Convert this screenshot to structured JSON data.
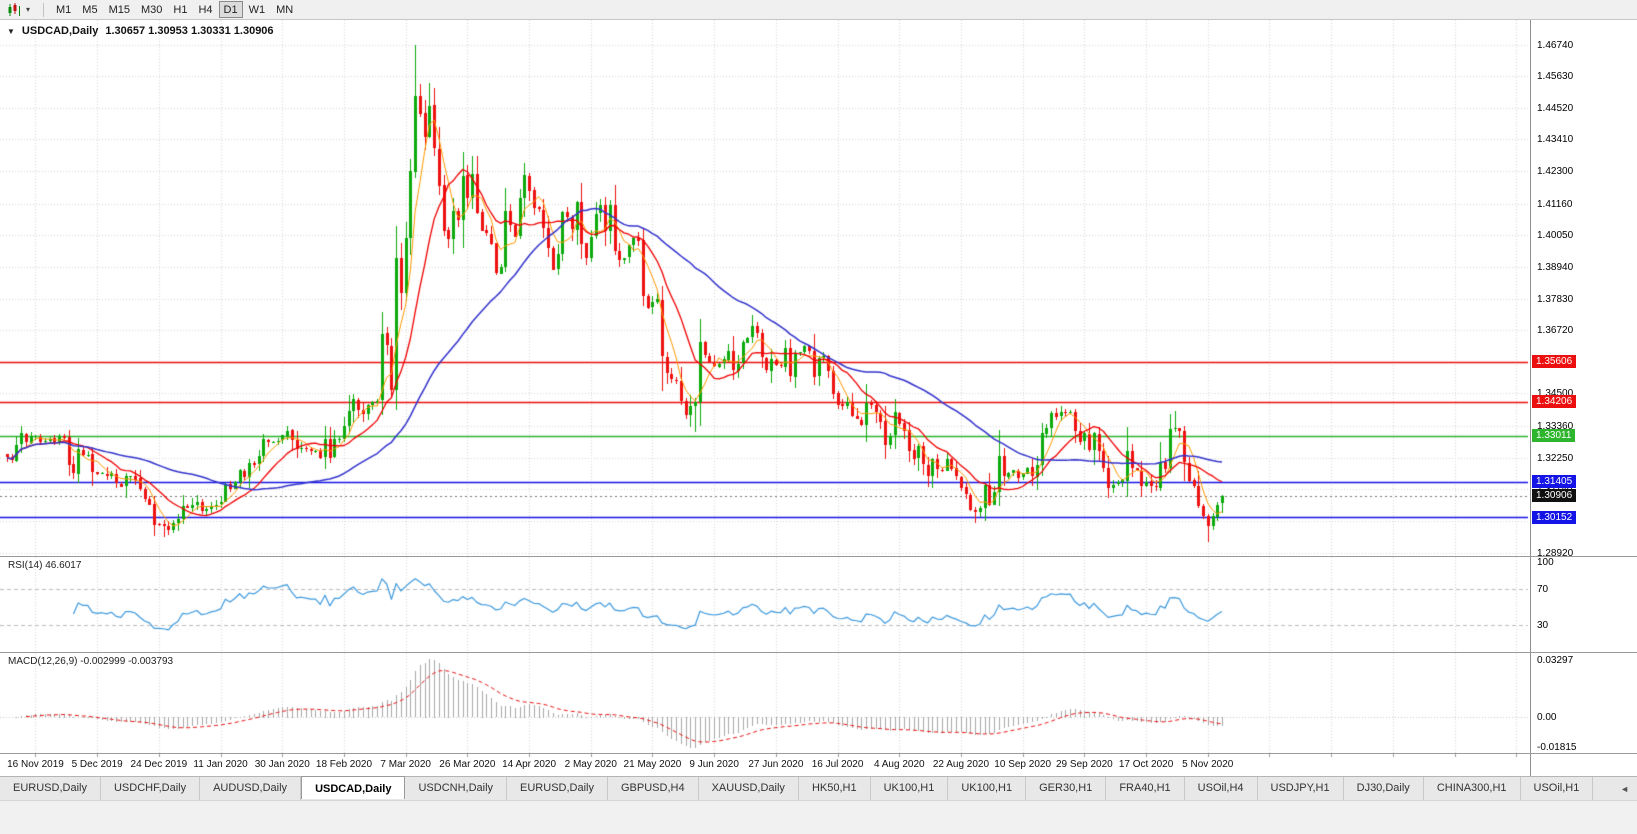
{
  "toolbar": {
    "dropdown_glyph": "▾",
    "timeframes": [
      "M1",
      "M5",
      "M15",
      "M30",
      "H1",
      "H4",
      "D1",
      "W1",
      "MN"
    ],
    "active_timeframe": "D1"
  },
  "chart": {
    "collapse_glyph": "▼",
    "title": "USDCAD,Daily",
    "ohlc": "1.30657 1.30953 1.30331 1.30906"
  },
  "tabs": {
    "items": [
      "EURUSD,Daily",
      "USDCHF,Daily",
      "AUDUSD,Daily",
      "USDCAD,Daily",
      "USDCNH,Daily",
      "EURUSD,Daily",
      "GBPUSD,H4",
      "XAUUSD,Daily",
      "HK50,H1",
      "UK100,H1",
      "UK100,H1",
      "GER30,H1",
      "FRA40,H1",
      "USOil,H4",
      "USDJPY,H1",
      "DJ30,Daily",
      "CHINA300,H1",
      "USOil,H1"
    ],
    "active_index": 3,
    "scroll_left_glyph": "◄"
  },
  "chart_data": {
    "type": "candlestick",
    "symbol": "USDCAD",
    "period": "Daily",
    "current_ohlc": {
      "open": 1.30657,
      "high": 1.30953,
      "low": 1.30331,
      "close": 1.30906
    },
    "current_price": 1.30906,
    "y_axis": {
      "min": 1.288,
      "max": 1.476,
      "tick_labels": [
        "1.46740",
        "1.45630",
        "1.44520",
        "1.43410",
        "1.42300",
        "1.41160",
        "1.40050",
        "1.38940",
        "1.37830",
        "1.36720",
        "1.35610",
        "1.34500",
        "1.33360",
        "1.32250",
        "1.31140",
        "1.30030",
        "1.28920"
      ]
    },
    "x_axis": {
      "tick_labels": [
        "16 Nov 2019",
        "5 Dec 2019",
        "24 Dec 2019",
        "11 Jan 2020",
        "30 Jan 2020",
        "18 Feb 2020",
        "7 Mar 2020",
        "26 Mar 2020",
        "14 Apr 2020",
        "2 May 2020",
        "21 May 2020",
        "9 Jun 2020",
        "27 Jun 2020",
        "16 Jul 2020",
        "4 Aug 2020",
        "22 Aug 2020",
        "10 Sep 2020",
        "29 Sep 2020",
        "17 Oct 2020",
        "5 Nov 2020"
      ]
    },
    "closes": [
      1.3225,
      1.3215,
      1.327,
      1.331,
      1.328,
      1.33,
      1.33,
      1.328,
      1.3285,
      1.329,
      1.328,
      1.33,
      1.3295,
      1.32,
      1.317,
      1.3255,
      1.3235,
      1.3235,
      1.3175,
      1.3165,
      1.317,
      1.316,
      1.317,
      1.3135,
      1.3125,
      1.316,
      1.316,
      1.315,
      1.3115,
      1.308,
      1.306,
      1.299,
      1.299,
      1.2985,
      1.297,
      1.2995,
      1.301,
      1.3055,
      1.305,
      1.306,
      1.307,
      1.304,
      1.3045,
      1.3055,
      1.306,
      1.307,
      1.313,
      1.3115,
      1.314,
      1.318,
      1.3155,
      1.3205,
      1.32,
      1.323,
      1.329,
      1.328,
      1.328,
      1.3285,
      1.3305,
      1.332,
      1.3285,
      1.3255,
      1.326,
      1.3255,
      1.325,
      1.325,
      1.3225,
      1.329,
      1.3225,
      1.329,
      1.329,
      1.3335,
      1.339,
      1.343,
      1.3395,
      1.338,
      1.341,
      1.342,
      1.3425,
      1.366,
      1.362,
      1.3465,
      1.3925,
      1.38,
      1.3995,
      1.423,
      1.4495,
      1.443,
      1.4349,
      1.446,
      1.431,
      1.418,
      1.402,
      1.399,
      1.409,
      1.406,
      1.4213,
      1.4135,
      1.422,
      1.4085,
      1.402,
      1.401,
      1.3975,
      1.387,
      1.3895,
      1.409,
      1.404,
      1.4,
      1.4135,
      1.4215,
      1.416,
      1.41,
      1.4095,
      1.403,
      1.396,
      1.3885,
      1.394,
      1.4085,
      1.407,
      1.4025,
      1.412,
      1.3975,
      1.3925,
      1.4,
      1.408,
      1.411,
      1.402,
      1.411,
      1.395,
      1.392,
      1.3925,
      1.397,
      1.3995,
      1.3985,
      1.379,
      1.375,
      1.377,
      1.378,
      1.358,
      1.352,
      1.35,
      1.3495,
      1.3425,
      1.3375,
      1.3405,
      1.342,
      1.363,
      1.3585,
      1.356,
      1.3545,
      1.3555,
      1.357,
      1.36,
      1.353,
      1.3555,
      1.363,
      1.3645,
      1.3685,
      1.366,
      1.3576,
      1.353,
      1.357,
      1.355,
      1.3545,
      1.361,
      1.351,
      1.359,
      1.3595,
      1.3615,
      1.36,
      1.351,
      1.3575,
      1.358,
      1.353,
      1.345,
      1.341,
      1.3405,
      1.342,
      1.337,
      1.336,
      1.334,
      1.3415,
      1.341,
      1.3385,
      1.335,
      1.327,
      1.33,
      1.3385,
      1.3345,
      1.332,
      1.325,
      1.322,
      1.3265,
      1.32,
      1.316,
      1.322,
      1.3185,
      1.318,
      1.322,
      1.3185,
      1.316,
      1.312,
      1.3095,
      1.304,
      1.3035,
      1.305,
      1.313,
      1.306,
      1.3105,
      1.323,
      1.316,
      1.317,
      1.318,
      1.3155,
      1.317,
      1.319,
      1.316,
      1.32,
      1.331,
      1.333,
      1.338,
      1.337,
      1.3385,
      1.338,
      1.3385,
      1.332,
      1.328,
      1.331,
      1.325,
      1.331,
      1.325,
      1.319,
      1.312,
      1.313,
      1.314,
      1.3145,
      1.325,
      1.319,
      1.318,
      1.3125,
      1.314,
      1.3125,
      1.312,
      1.321,
      1.3185,
      1.3325,
      1.333,
      1.332,
      1.321,
      1.3145,
      1.3125,
      1.3055,
      1.302,
      1.2985,
      1.302,
      1.306,
      1.30906
    ],
    "wick_overrides": {
      "31": {
        "l": 1.2952
      },
      "33": {
        "l": 1.295
      },
      "86": {
        "h": 1.4674
      },
      "145": {
        "l": 1.3315
      },
      "204": {
        "l": 1.2994
      },
      "246": {
        "h": 1.339
      },
      "253": {
        "l": 1.2928
      },
      "256": {
        "o": 1.30657,
        "h": 1.30953,
        "l": 1.30331
      }
    },
    "seed": 20201113,
    "candle_up_color": "#0caa0c",
    "candle_down_color": "#ee1111",
    "moving_averages": [
      {
        "period": 5,
        "color": "#ff9900",
        "width": 1
      },
      {
        "period": 12,
        "color": "#f20000",
        "width": 1.3
      },
      {
        "period": 40,
        "color": "#3333cc",
        "width": 1.5
      }
    ],
    "horizontal_levels": [
      {
        "price": 1.35606,
        "color": "#ec0f0f"
      },
      {
        "price": 1.34206,
        "color": "#ec0f0f"
      },
      {
        "price": 1.33011,
        "color": "#2db52d"
      },
      {
        "price": 1.31405,
        "color": "#1414e6"
      },
      {
        "price": 1.30152,
        "color": "#1414e6"
      }
    ],
    "price_tags": [
      {
        "text": "1.35606",
        "price": 1.35606,
        "bg": "#ec0f0f"
      },
      {
        "text": "1.34206",
        "price": 1.34206,
        "bg": "#ec0f0f"
      },
      {
        "text": "1.33011",
        "price": 1.33011,
        "bg": "#2db52d"
      },
      {
        "text": "1.31405",
        "price": 1.31405,
        "bg": "#1414e6"
      },
      {
        "text": "1.30906",
        "price": 1.30906,
        "bg": "#101010"
      },
      {
        "text": "1.30152",
        "price": 1.30152,
        "bg": "#1414e6"
      }
    ],
    "rsi": {
      "display_label": "RSI(14) 46.6017",
      "period": 14,
      "current": 46.6017,
      "range": [
        0,
        105
      ],
      "levels": [
        70,
        30
      ],
      "axis_labels": [
        {
          "text": "100",
          "value": 100
        },
        {
          "text": "70",
          "value": 70
        },
        {
          "text": "30",
          "value": 30
        }
      ],
      "color": "#3e9ade"
    },
    "macd": {
      "display_label": "MACD(12,26,9) -0.002999 -0.003793",
      "fast": 12,
      "slow": 26,
      "signal": 9,
      "current_main": -0.002999,
      "current_signal": -0.003793,
      "range": [
        -0.01815,
        0.03297
      ],
      "axis_labels": [
        {
          "text": "0.03297",
          "value": 0.03297
        },
        {
          "text": "0.00",
          "value": 0
        },
        {
          "text": "-0.01815",
          "value": -0.01815
        }
      ],
      "hist_color": "#a8a8a8",
      "signal_color": "#e81414"
    }
  }
}
